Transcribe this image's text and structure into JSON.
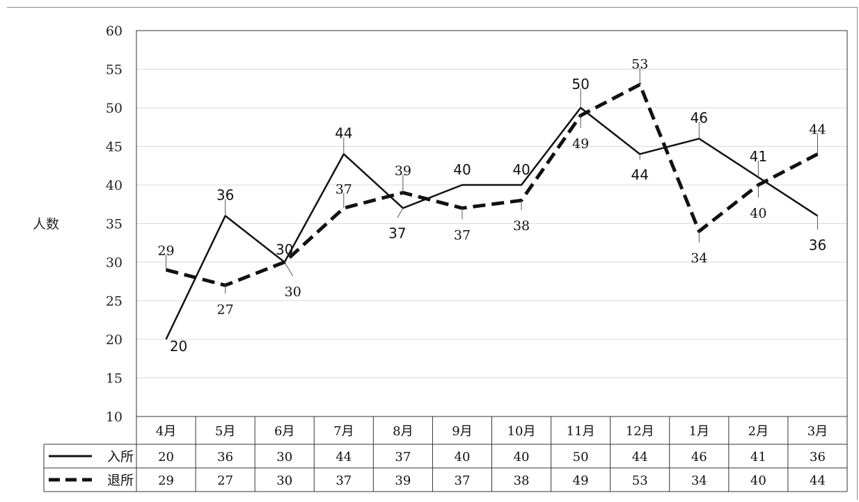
{
  "chart_data": {
    "type": "line",
    "categories": [
      "4月",
      "5月",
      "6月",
      "7月",
      "8月",
      "9月",
      "10月",
      "11月",
      "12月",
      "1月",
      "2月",
      "3月"
    ],
    "series": [
      {
        "name": "入所",
        "values": [
          20,
          36,
          30,
          44,
          37,
          40,
          40,
          50,
          44,
          46,
          41,
          36
        ],
        "style": "solid",
        "color": "#111111"
      },
      {
        "name": "退所",
        "values": [
          29,
          27,
          30,
          37,
          39,
          37,
          38,
          49,
          53,
          34,
          40,
          44
        ],
        "style": "dashed",
        "color": "#111111"
      }
    ],
    "ylabel": "人数",
    "ylim": [
      10,
      60
    ],
    "yticks": [
      10,
      15,
      20,
      25,
      30,
      35,
      40,
      45,
      50,
      55,
      60
    ],
    "grid": true,
    "legend": "data-table-below"
  }
}
